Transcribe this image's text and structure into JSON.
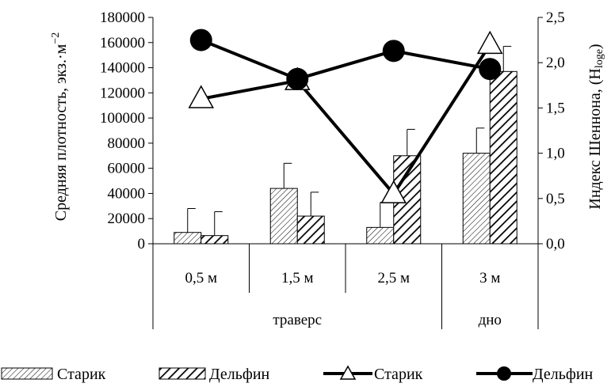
{
  "chart_data": {
    "type": "bar",
    "categories": [
      "0,5 м",
      "1,5 м",
      "2,5 м",
      "3 м"
    ],
    "groups": [
      {
        "label": "траверс",
        "categories": [
          "0,5 м",
          "1,5 м",
          "2,5 м"
        ]
      },
      {
        "label": "дно",
        "categories": [
          "3 м"
        ]
      }
    ],
    "ylabel": "Средняя плотность, экз.·м",
    "ylabel_superscript": "−2",
    "y2label": "Индекс Шеннона, (H",
    "y2label_subscript": "loge",
    "y2label_suffix": ")",
    "ylim": [
      0,
      180000
    ],
    "yticks": [
      "0",
      "20000",
      "40000",
      "60000",
      "80000",
      "100000",
      "120000",
      "140000",
      "160000",
      "180000"
    ],
    "y2lim": [
      0,
      2.5
    ],
    "y2ticks": [
      "0,0",
      "0,5",
      "1,0",
      "1,5",
      "2,0",
      "2,5"
    ],
    "bar_series": [
      {
        "name": "Старик",
        "values": [
          9000,
          44000,
          13000,
          72000
        ],
        "errors": [
          19000,
          20000,
          20000,
          20000
        ],
        "pattern": "fine-hatch"
      },
      {
        "name": "Дельфин",
        "values": [
          6500,
          22000,
          70000,
          137000
        ],
        "errors": [
          19000,
          19000,
          21000,
          20000
        ],
        "pattern": "bold-hatch"
      }
    ],
    "line_series": [
      {
        "name": "Старик",
        "axis": "right",
        "values": [
          1.6,
          1.8,
          0.55,
          2.2
        ],
        "marker": "triangle"
      },
      {
        "name": "Дельфин",
        "axis": "right",
        "values": [
          2.25,
          1.82,
          2.13,
          1.93
        ],
        "marker": "circle"
      }
    ],
    "legend_position": "bottom",
    "grid": false
  }
}
